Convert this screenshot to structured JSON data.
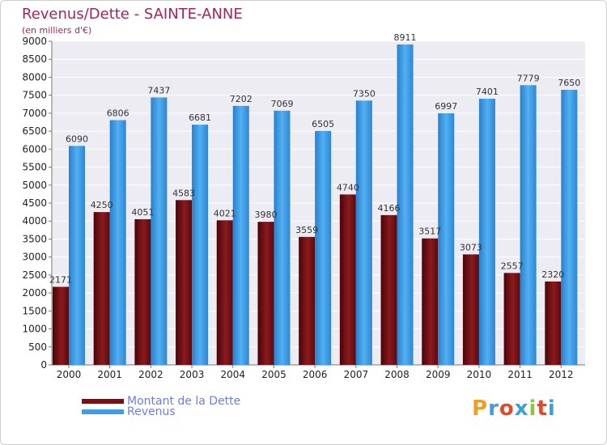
{
  "header": {
    "title": "Revenus/Dette - SAINTE-ANNE",
    "subtitle": "(en milliers d'€)"
  },
  "chart_data": {
    "type": "bar",
    "title": "Revenus/Dette - SAINTE-ANNE",
    "ylabel": "(en milliers d'€)",
    "xlabel": "",
    "ylim": [
      0,
      9000
    ],
    "ytick_step": 500,
    "grid": true,
    "legend_position": "bottom-left",
    "categories": [
      "2000",
      "2001",
      "2002",
      "2003",
      "2004",
      "2005",
      "2006",
      "2007",
      "2008",
      "2009",
      "2010",
      "2011",
      "2012"
    ],
    "series": [
      {
        "name": "Montant de la Dette",
        "color": "#7a0e12",
        "values": [
          2171,
          4250,
          4051,
          4583,
          4021,
          3980,
          3559,
          4740,
          4166,
          3517,
          3073,
          2557,
          2320
        ],
        "labels": [
          "2171",
          "4250",
          "4051",
          "4583",
          "4021",
          "3980",
          "3559",
          "4740",
          "4166",
          "3517",
          "3073",
          "2557",
          "2320"
        ]
      },
      {
        "name": "Revenus",
        "color": "#3d9de6",
        "values": [
          6090,
          6806,
          7437,
          6681,
          7202,
          7069,
          6505,
          7350,
          8911,
          6997,
          7401,
          7779,
          7650
        ],
        "labels": [
          "6090",
          "6806",
          "7437",
          "6681",
          "7202",
          "7069",
          "6505",
          "7350",
          "8911",
          "6997",
          "7401",
          "7779",
          "7650"
        ]
      }
    ]
  },
  "legend": {
    "items": [
      {
        "label": "Montant de la Dette",
        "color": "#7a0e12"
      },
      {
        "label": "Revenus",
        "color": "#3d9de6"
      }
    ]
  },
  "logo": {
    "letters": [
      "P",
      "r",
      "o",
      "x",
      "i",
      "t",
      "i"
    ],
    "colors": [
      "#f0a020",
      "#3aa0e0",
      "#e04a2a",
      "#3aa0e0",
      "#8cc63f",
      "#e04a2a",
      "#3aa0e0"
    ]
  }
}
